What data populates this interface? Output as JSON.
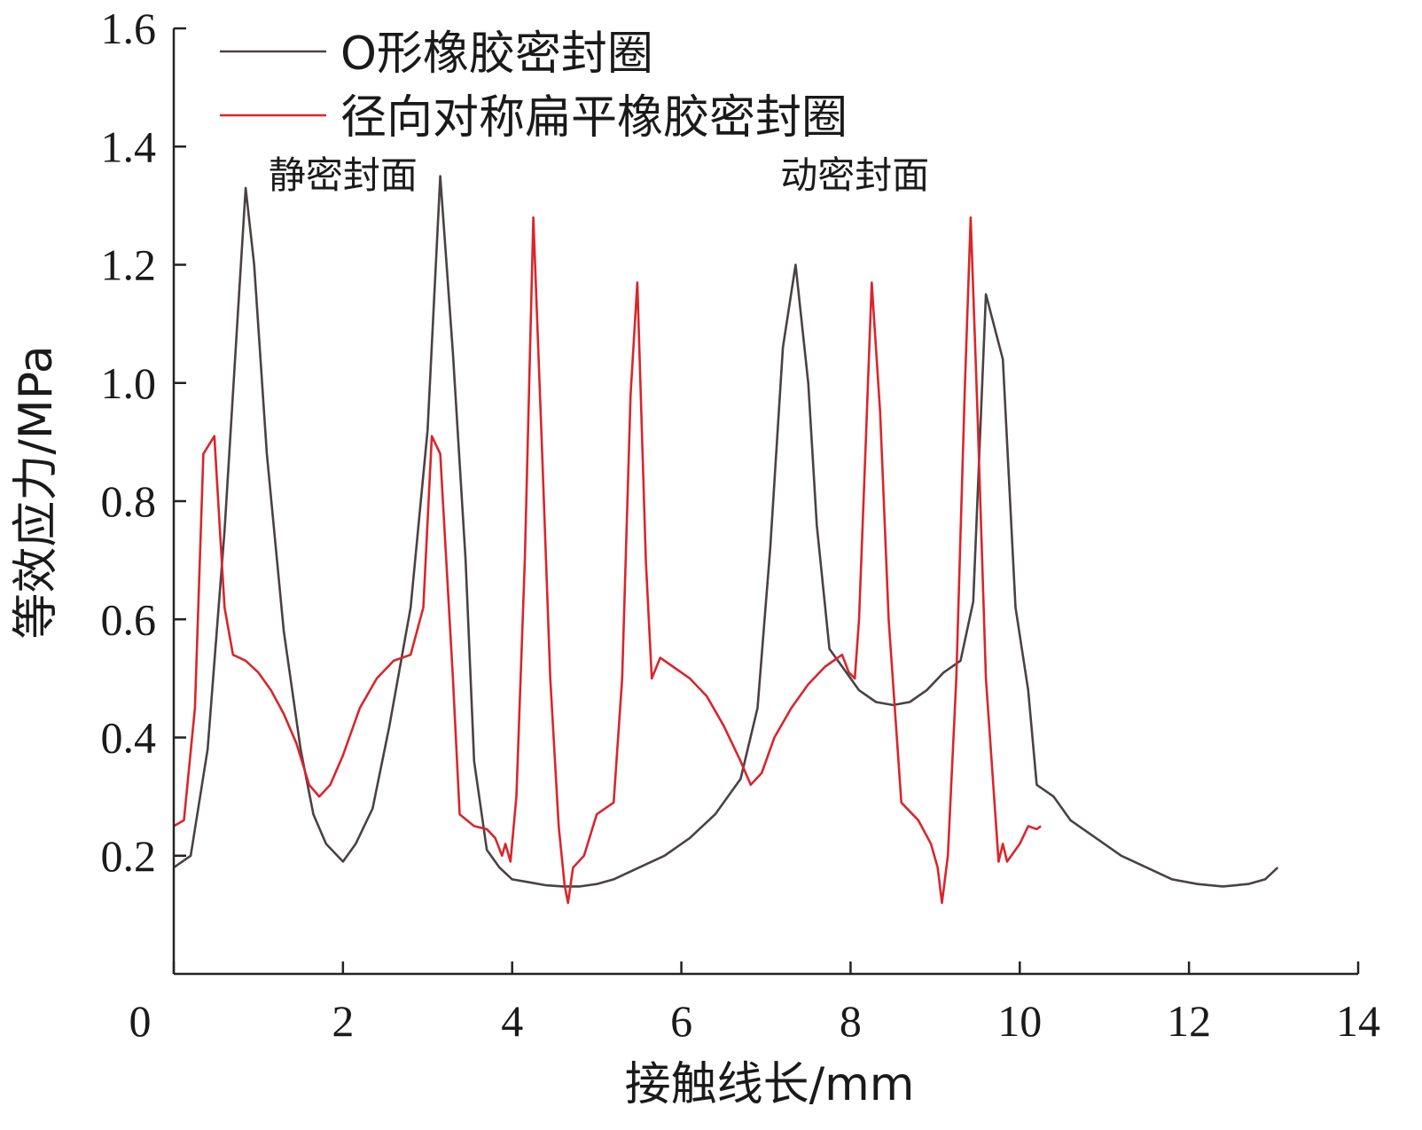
{
  "chart_data": {
    "type": "line",
    "xlabel": "接触线长/mm",
    "ylabel": "等效应力/MPa",
    "xlim": [
      0,
      14
    ],
    "ylim": [
      0,
      1.6
    ],
    "x_ticks": [
      "0",
      "2",
      "4",
      "6",
      "8",
      "10",
      "12",
      "14"
    ],
    "y_ticks": [
      "0.2",
      "0.4",
      "0.6",
      "0.8",
      "1.0",
      "1.2",
      "1.4",
      "1.6"
    ],
    "grid": false,
    "legend_position": "top-left",
    "annotations": [
      {
        "text": "静密封面",
        "x": 2.0,
        "y": 1.33
      },
      {
        "text": "动密封面",
        "x": 8.05,
        "y": 1.33
      }
    ],
    "series": [
      {
        "name": "O形橡胶密封圈",
        "color": "#4a4242",
        "points": [
          [
            0,
            0.18
          ],
          [
            0.2,
            0.2
          ],
          [
            0.4,
            0.38
          ],
          [
            0.6,
            0.75
          ],
          [
            0.75,
            1.1
          ],
          [
            0.85,
            1.33
          ],
          [
            0.95,
            1.2
          ],
          [
            1.1,
            0.88
          ],
          [
            1.3,
            0.58
          ],
          [
            1.5,
            0.38
          ],
          [
            1.65,
            0.27
          ],
          [
            1.8,
            0.22
          ],
          [
            2.0,
            0.19
          ],
          [
            2.15,
            0.22
          ],
          [
            2.35,
            0.28
          ],
          [
            2.55,
            0.42
          ],
          [
            2.8,
            0.62
          ],
          [
            3.0,
            0.92
          ],
          [
            3.15,
            1.35
          ],
          [
            3.3,
            1.05
          ],
          [
            3.45,
            0.7
          ],
          [
            3.55,
            0.36
          ],
          [
            3.7,
            0.21
          ],
          [
            3.85,
            0.18
          ],
          [
            4.0,
            0.16
          ],
          [
            4.2,
            0.155
          ],
          [
            4.4,
            0.15
          ],
          [
            4.6,
            0.148
          ],
          [
            4.8,
            0.148
          ],
          [
            5.0,
            0.152
          ],
          [
            5.2,
            0.16
          ],
          [
            5.5,
            0.18
          ],
          [
            5.8,
            0.2
          ],
          [
            6.1,
            0.23
          ],
          [
            6.4,
            0.27
          ],
          [
            6.7,
            0.33
          ],
          [
            6.9,
            0.45
          ],
          [
            7.05,
            0.72
          ],
          [
            7.2,
            1.06
          ],
          [
            7.35,
            1.2
          ],
          [
            7.5,
            1.0
          ],
          [
            7.6,
            0.76
          ],
          [
            7.75,
            0.55
          ],
          [
            7.9,
            0.52
          ],
          [
            8.1,
            0.48
          ],
          [
            8.3,
            0.46
          ],
          [
            8.5,
            0.455
          ],
          [
            8.7,
            0.46
          ],
          [
            8.9,
            0.48
          ],
          [
            9.1,
            0.51
          ],
          [
            9.3,
            0.53
          ],
          [
            9.45,
            0.63
          ],
          [
            9.6,
            1.15
          ],
          [
            9.8,
            1.04
          ],
          [
            9.95,
            0.62
          ],
          [
            10.1,
            0.48
          ],
          [
            10.2,
            0.32
          ],
          [
            10.4,
            0.3
          ],
          [
            10.6,
            0.26
          ],
          [
            10.9,
            0.23
          ],
          [
            11.2,
            0.2
          ],
          [
            11.5,
            0.18
          ],
          [
            11.8,
            0.16
          ],
          [
            12.1,
            0.152
          ],
          [
            12.4,
            0.148
          ],
          [
            12.7,
            0.152
          ],
          [
            12.9,
            0.16
          ],
          [
            13.05,
            0.18
          ]
        ]
      },
      {
        "name": "径向对称扁平橡胶密封圈",
        "color": "#d8262c",
        "points": [
          [
            0,
            0.25
          ],
          [
            0.12,
            0.26
          ],
          [
            0.25,
            0.45
          ],
          [
            0.35,
            0.88
          ],
          [
            0.48,
            0.91
          ],
          [
            0.55,
            0.74
          ],
          [
            0.6,
            0.62
          ],
          [
            0.7,
            0.54
          ],
          [
            0.85,
            0.53
          ],
          [
            1.0,
            0.51
          ],
          [
            1.15,
            0.48
          ],
          [
            1.3,
            0.44
          ],
          [
            1.45,
            0.39
          ],
          [
            1.6,
            0.32
          ],
          [
            1.72,
            0.3
          ],
          [
            1.85,
            0.32
          ],
          [
            2.0,
            0.37
          ],
          [
            2.2,
            0.45
          ],
          [
            2.4,
            0.5
          ],
          [
            2.6,
            0.53
          ],
          [
            2.8,
            0.54
          ],
          [
            2.95,
            0.62
          ],
          [
            3.05,
            0.91
          ],
          [
            3.15,
            0.88
          ],
          [
            3.3,
            0.5
          ],
          [
            3.38,
            0.27
          ],
          [
            3.55,
            0.25
          ],
          [
            3.7,
            0.245
          ],
          [
            3.8,
            0.23
          ],
          [
            3.88,
            0.2
          ],
          [
            3.92,
            0.22
          ],
          [
            3.98,
            0.19
          ],
          [
            4.05,
            0.3
          ],
          [
            4.15,
            0.7
          ],
          [
            4.25,
            1.28
          ],
          [
            4.35,
            0.9
          ],
          [
            4.45,
            0.5
          ],
          [
            4.55,
            0.25
          ],
          [
            4.62,
            0.15
          ],
          [
            4.66,
            0.12
          ],
          [
            4.72,
            0.18
          ],
          [
            4.85,
            0.2
          ],
          [
            5.0,
            0.27
          ],
          [
            5.2,
            0.29
          ],
          [
            5.3,
            0.5
          ],
          [
            5.4,
            0.98
          ],
          [
            5.48,
            1.17
          ],
          [
            5.58,
            0.7
          ],
          [
            5.65,
            0.5
          ],
          [
            5.75,
            0.535
          ],
          [
            5.9,
            0.52
          ],
          [
            6.1,
            0.5
          ],
          [
            6.3,
            0.47
          ],
          [
            6.5,
            0.42
          ],
          [
            6.7,
            0.36
          ],
          [
            6.82,
            0.32
          ],
          [
            6.95,
            0.34
          ],
          [
            7.1,
            0.4
          ],
          [
            7.3,
            0.45
          ],
          [
            7.5,
            0.49
          ],
          [
            7.7,
            0.52
          ],
          [
            7.9,
            0.54
          ],
          [
            7.98,
            0.51
          ],
          [
            8.05,
            0.5
          ],
          [
            8.1,
            0.6
          ],
          [
            8.18,
            0.9
          ],
          [
            8.25,
            1.17
          ],
          [
            8.35,
            0.95
          ],
          [
            8.45,
            0.6
          ],
          [
            8.6,
            0.29
          ],
          [
            8.8,
            0.26
          ],
          [
            8.95,
            0.22
          ],
          [
            9.03,
            0.18
          ],
          [
            9.08,
            0.12
          ],
          [
            9.15,
            0.2
          ],
          [
            9.25,
            0.5
          ],
          [
            9.35,
            0.99
          ],
          [
            9.42,
            1.28
          ],
          [
            9.5,
            0.95
          ],
          [
            9.6,
            0.5
          ],
          [
            9.75,
            0.19
          ],
          [
            9.8,
            0.22
          ],
          [
            9.85,
            0.19
          ],
          [
            10.0,
            0.22
          ],
          [
            10.1,
            0.25
          ],
          [
            10.2,
            0.245
          ],
          [
            10.25,
            0.25
          ]
        ]
      }
    ]
  }
}
